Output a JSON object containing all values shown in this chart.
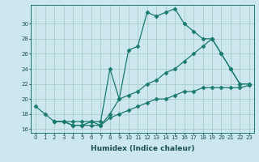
{
  "title": "",
  "xlabel": "Humidex (Indice chaleur)",
  "bg_color": "#cce8ee",
  "grid_color": "#aacccc",
  "line_color": "#1a7a6e",
  "line1_x": [
    0,
    1,
    2,
    3,
    4,
    5,
    6,
    7,
    8,
    9,
    10,
    11,
    12,
    13,
    14,
    15,
    16,
    17,
    18,
    19,
    20,
    21,
    22,
    23
  ],
  "line1_y": [
    19,
    18,
    17,
    17,
    17,
    17,
    17,
    16.5,
    18,
    20,
    26.5,
    27,
    31.5,
    31,
    31.5,
    32,
    30,
    29,
    28,
    28,
    26,
    24,
    22,
    22
  ],
  "line2_x": [
    2,
    3,
    4,
    5,
    6,
    7,
    8,
    9,
    10,
    11,
    12,
    13,
    14,
    15,
    16,
    17,
    18,
    19,
    20,
    21,
    22,
    23
  ],
  "line2_y": [
    17,
    17,
    16.5,
    16.5,
    17,
    17,
    24,
    20,
    20.5,
    21,
    22,
    22.5,
    23.5,
    24,
    25,
    26,
    27,
    28,
    26,
    24,
    22,
    22
  ],
  "line3_x": [
    2,
    3,
    4,
    5,
    6,
    7,
    8,
    9,
    10,
    11,
    12,
    13,
    14,
    15,
    16,
    17,
    18,
    19,
    20,
    21,
    22,
    23
  ],
  "line3_y": [
    17,
    17,
    16.5,
    16.5,
    16.5,
    16.5,
    17.5,
    18,
    18.5,
    19,
    19.5,
    20,
    20,
    20.5,
    21,
    21,
    21.5,
    21.5,
    21.5,
    21.5,
    21.5,
    21.8
  ],
  "ylim": [
    15.5,
    32.5
  ],
  "xlim": [
    -0.5,
    23.5
  ],
  "yticks": [
    16,
    18,
    20,
    22,
    24,
    26,
    28,
    30
  ],
  "xticks": [
    0,
    1,
    2,
    3,
    4,
    5,
    6,
    7,
    8,
    9,
    10,
    11,
    12,
    13,
    14,
    15,
    16,
    17,
    18,
    19,
    20,
    21,
    22,
    23
  ],
  "tick_fontsize": 5.0,
  "xlabel_fontsize": 6.5
}
